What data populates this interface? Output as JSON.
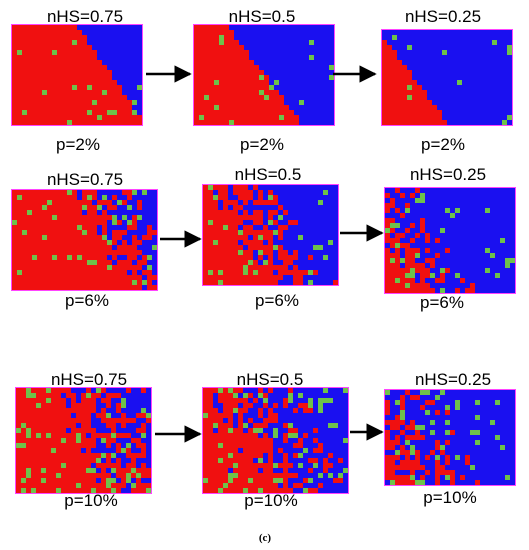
{
  "colors": {
    "matrix": "#f01010",
    "domain": "#1a10f0",
    "defect": "#6ec24a",
    "edge": "#ff44ff"
  },
  "rows": [
    {
      "row_label": "p=2%",
      "panels": [
        {
          "top_label": "nHS=0.75",
          "bottom_label": "p=2%",
          "blue_fraction": 0.25,
          "defect_fraction": 0.02
        },
        {
          "top_label": "nHS=0.5",
          "bottom_label": "p=2%",
          "blue_fraction": 0.5,
          "defect_fraction": 0.02
        },
        {
          "top_label": "nHS=0.25",
          "bottom_label": "p=2%",
          "blue_fraction": 0.75,
          "defect_fraction": 0.02
        }
      ]
    },
    {
      "row_label": "p=6%",
      "panels": [
        {
          "top_label": "nHS=0.75",
          "bottom_label": "p=6%",
          "blue_fraction": 0.25,
          "defect_fraction": 0.06
        },
        {
          "top_label": "nHS=0.5",
          "bottom_label": "p=6%",
          "blue_fraction": 0.5,
          "defect_fraction": 0.06
        },
        {
          "top_label": "nHS=0.25",
          "bottom_label": "p=6%",
          "blue_fraction": 0.75,
          "defect_fraction": 0.06
        }
      ]
    },
    {
      "row_label": "p=10%",
      "panels": [
        {
          "top_label": "nHS=0.75",
          "bottom_label": "p=10%",
          "blue_fraction": 0.25,
          "defect_fraction": 0.1
        },
        {
          "top_label": "nHS=0.5",
          "bottom_label": "p=10%",
          "blue_fraction": 0.5,
          "defect_fraction": 0.1
        },
        {
          "top_label": "nHS=0.25",
          "bottom_label": "p=10%",
          "blue_fraction": 0.75,
          "defect_fraction": 0.1
        }
      ]
    }
  ],
  "caption": "(c)"
}
